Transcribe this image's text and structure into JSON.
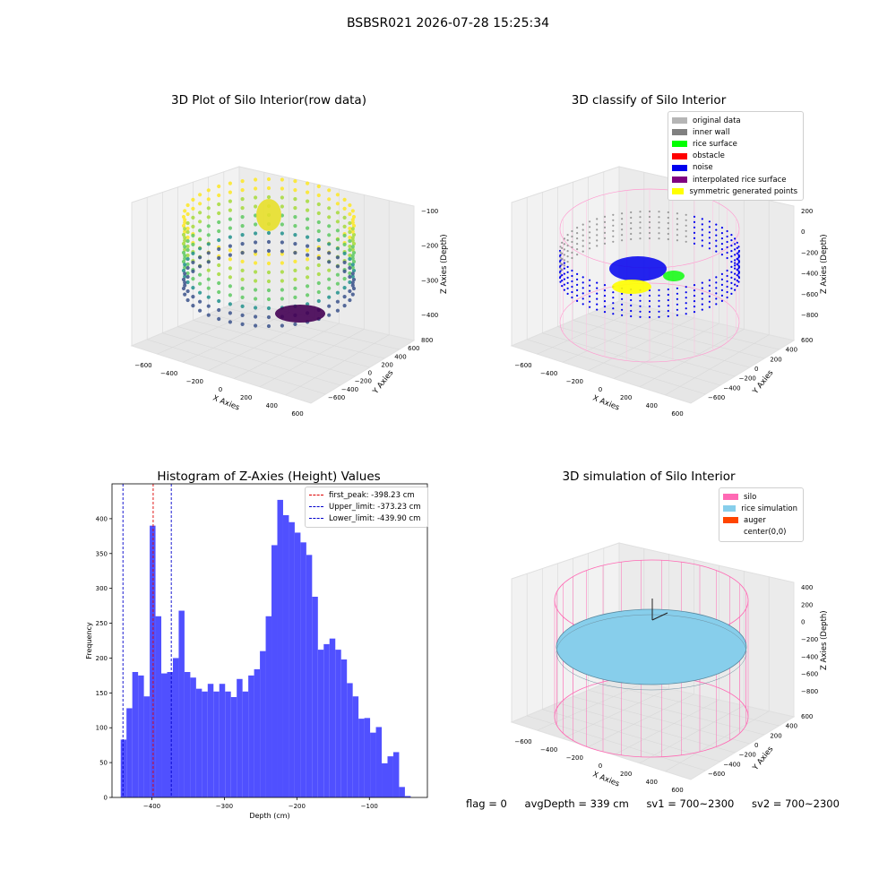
{
  "suptitle": "BSBSR021 2026-07-28 15:25:34",
  "panels": {
    "raw": {
      "title": "3D Plot of Silo Interior(row data)",
      "xlabel": "X Axies",
      "ylabel": "Y Axies",
      "zlabel": "Z Axies (Depth)",
      "xticks": [
        "−600",
        "−400",
        "−200",
        "0",
        "200",
        "400",
        "600"
      ],
      "yticks": [
        "−600",
        "−400",
        "−200",
        "0",
        "200",
        "400",
        "600",
        "800"
      ],
      "zticks": [
        "−100",
        "−200",
        "−300",
        "−400"
      ]
    },
    "classify": {
      "title": "3D classify of Silo Interior",
      "xlabel": "X Axies",
      "ylabel": "Y Axies",
      "zlabel": "Z Axies (Depth)",
      "xticks": [
        "−600",
        "−400",
        "−200",
        "0",
        "200",
        "400",
        "600"
      ],
      "yticks": [
        "−600",
        "−400",
        "−200",
        "0",
        "200",
        "400",
        "600"
      ],
      "zticks": [
        "200",
        "0",
        "−200",
        "−400",
        "−600",
        "−800"
      ],
      "legend": [
        {
          "label": "original data",
          "color": "#b5b5b5"
        },
        {
          "label": "inner wall",
          "color": "#808080"
        },
        {
          "label": "rice surface",
          "color": "#00ff00"
        },
        {
          "label": "obstacle",
          "color": "#ff0000"
        },
        {
          "label": "noise",
          "color": "#0000ee"
        },
        {
          "label": "interpolated rice surface",
          "color": "#800080"
        },
        {
          "label": "symmetric generated points",
          "color": "#ffff00"
        }
      ]
    },
    "simulation": {
      "title": "3D simulation of Silo Interior",
      "xlabel": "X Axies",
      "ylabel": "Y Axies",
      "zlabel": "Z Axies (Depth)",
      "xticks": [
        "−600",
        "−400",
        "−200",
        "0",
        "200",
        "400",
        "600"
      ],
      "yticks": [
        "−600",
        "−400",
        "−200",
        "0",
        "200",
        "400",
        "600"
      ],
      "zticks": [
        "400",
        "200",
        "0",
        "−200",
        "−400",
        "−600",
        "−800"
      ],
      "legend": [
        {
          "label": "silo",
          "color": "#ff69b4"
        },
        {
          "label": "rice simulation",
          "color": "#87ceeb"
        },
        {
          "label": "auger",
          "color": "#ff4500"
        },
        {
          "label": "center(0,0)",
          "color": "#ffffff"
        }
      ]
    }
  },
  "footer": {
    "flag": "flag = 0",
    "avg": "avgDepth = 339 cm",
    "sv1": "sv1 = 700~2300",
    "sv2": "sv2 = 700~2300"
  },
  "chart_data": [
    {
      "type": "bar",
      "title": "Histogram of Z-Axies (Height) Values",
      "xlabel": "Depth (cm)",
      "ylabel": "Frequency",
      "xlim": [
        -455,
        -20
      ],
      "ylim": [
        0,
        450
      ],
      "xticks": [
        -400,
        -300,
        -200,
        -100
      ],
      "yticks": [
        0,
        50,
        100,
        150,
        200,
        250,
        300,
        350,
        400
      ],
      "bin_start": -443,
      "bin_width": 8,
      "values": [
        83,
        128,
        180,
        175,
        145,
        390,
        260,
        178,
        180,
        200,
        268,
        180,
        172,
        156,
        152,
        163,
        152,
        163,
        152,
        144,
        170,
        152,
        175,
        184,
        210,
        260,
        362,
        427,
        405,
        395,
        380,
        366,
        348,
        288,
        212,
        220,
        228,
        212,
        198,
        164,
        145,
        113,
        114,
        93,
        101,
        49,
        59,
        65,
        15,
        2
      ],
      "color": "#5050ff",
      "series": [
        {
          "name": "first_peak: -398.23 cm",
          "x": -398.23,
          "color": "#dd0000",
          "style": "dashed"
        },
        {
          "name": "Upper_limit: -373.23 cm",
          "x": -373.23,
          "color": "#0000cc",
          "style": "dashed"
        },
        {
          "name": "Lower_limit: -439.90 cm",
          "x": -439.9,
          "color": "#0000cc",
          "style": "dashed"
        }
      ],
      "legend_loc": "upper right"
    }
  ]
}
